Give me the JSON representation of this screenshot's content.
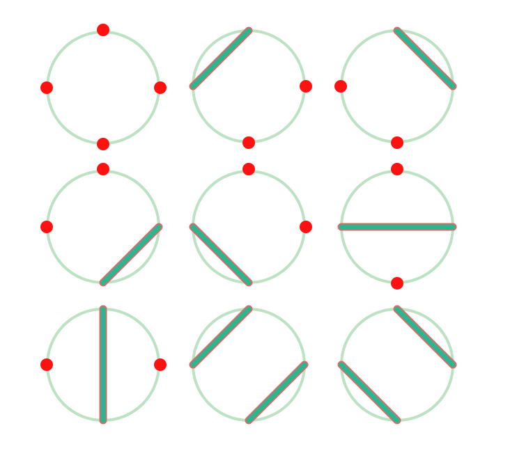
{
  "colors": {
    "background": "#ffffff",
    "ring": "#b9dfc0",
    "chord_fill": "#2bb68f",
    "chord_outline": "#d96a6a",
    "point": "#ff1111"
  },
  "diagram": {
    "rows": 3,
    "columns": 3,
    "points_per_circle": 4,
    "configurations": [
      {
        "points": [
          "top",
          "right",
          "bottom",
          "left"
        ],
        "chords": []
      },
      {
        "points": [
          "right",
          "bottom"
        ],
        "chords": [
          [
            "left",
            "top"
          ]
        ]
      },
      {
        "points": [
          "left",
          "bottom"
        ],
        "chords": [
          [
            "top",
            "right"
          ]
        ]
      },
      {
        "points": [
          "top",
          "left"
        ],
        "chords": [
          [
            "bottom",
            "right"
          ]
        ]
      },
      {
        "points": [
          "top",
          "right"
        ],
        "chords": [
          [
            "left",
            "bottom"
          ]
        ]
      },
      {
        "points": [
          "top",
          "bottom"
        ],
        "chords": [
          [
            "left",
            "right"
          ]
        ]
      },
      {
        "points": [
          "left",
          "right"
        ],
        "chords": [
          [
            "top",
            "bottom"
          ]
        ]
      },
      {
        "points": [],
        "chords": [
          [
            "left",
            "top"
          ],
          [
            "bottom",
            "right"
          ]
        ]
      },
      {
        "points": [],
        "chords": [
          [
            "top",
            "right"
          ],
          [
            "left",
            "bottom"
          ]
        ]
      }
    ]
  }
}
